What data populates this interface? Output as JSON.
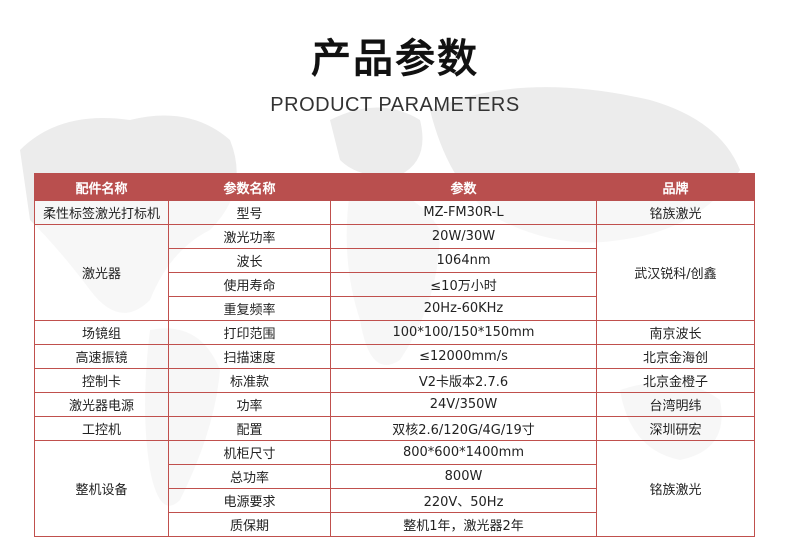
{
  "title": "产品参数",
  "subtitle": "PRODUCT PARAMETERS",
  "colors": {
    "header_bg": "#b94f4e",
    "border": "#c0504d"
  },
  "table": {
    "headers": [
      "配件名称",
      "参数名称",
      "参数",
      "品牌"
    ],
    "groups": [
      {
        "part": "柔性标签激光打标机",
        "brand": "铭族激光",
        "rows": [
          [
            "型号",
            "MZ-FM30R-L"
          ]
        ]
      },
      {
        "part": "激光器",
        "brand": "武汉锐科/创鑫",
        "rows": [
          [
            "激光功率",
            "20W/30W"
          ],
          [
            "波长",
            "1064nm"
          ],
          [
            "使用寿命",
            "≤10万小时"
          ],
          [
            "重复频率",
            "20Hz-60KHz"
          ]
        ]
      },
      {
        "part": "场镜组",
        "brand": "南京波长",
        "rows": [
          [
            "打印范围",
            "100*100/150*150mm"
          ]
        ]
      },
      {
        "part": "高速振镜",
        "brand": "北京金海创",
        "rows": [
          [
            "扫描速度",
            "≤12000mm/s"
          ]
        ]
      },
      {
        "part": "控制卡",
        "brand": "北京金橙子",
        "rows": [
          [
            "标准款",
            "V2卡版本2.7.6"
          ]
        ]
      },
      {
        "part": "激光器电源",
        "brand": "台湾明纬",
        "rows": [
          [
            "功率",
            "24V/350W"
          ]
        ]
      },
      {
        "part": "工控机",
        "brand": "深圳研宏",
        "rows": [
          [
            "配置",
            "双核2.6/120G/4G/19寸"
          ]
        ]
      },
      {
        "part": "整机设备",
        "brand": "铭族激光",
        "rows": [
          [
            "机柜尺寸",
            "800*600*1400mm"
          ],
          [
            "总功率",
            "800W"
          ],
          [
            "电源要求",
            "220V、50Hz"
          ],
          [
            "质保期",
            "整机1年，激光器2年"
          ]
        ]
      }
    ]
  }
}
